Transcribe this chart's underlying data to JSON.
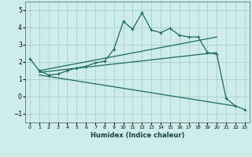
{
  "xlabel": "Humidex (Indice chaleur)",
  "xlim": [
    -0.5,
    23.5
  ],
  "ylim": [
    -1.5,
    5.5
  ],
  "yticks": [
    -1,
    0,
    1,
    2,
    3,
    4,
    5
  ],
  "xticks": [
    0,
    1,
    2,
    3,
    4,
    5,
    6,
    7,
    8,
    9,
    10,
    11,
    12,
    13,
    14,
    15,
    16,
    17,
    18,
    19,
    20,
    21,
    22,
    23
  ],
  "bg_color": "#cdecea",
  "grid_color": "#aacfcc",
  "line_color": "#1a6b5e",
  "line1_x": [
    0,
    1,
    2,
    3,
    4,
    5,
    6,
    7,
    8,
    9,
    10,
    11,
    12,
    13,
    14,
    15,
    16,
    17,
    18,
    19,
    20,
    21,
    22,
    23
  ],
  "line1_y": [
    2.2,
    1.5,
    1.25,
    1.3,
    1.5,
    1.65,
    1.75,
    1.95,
    2.05,
    2.75,
    4.35,
    3.9,
    4.85,
    3.85,
    3.7,
    3.95,
    3.55,
    3.45,
    3.45,
    2.55,
    2.45,
    -0.1,
    -0.55,
    -0.75
  ],
  "line2_x": [
    1,
    20
  ],
  "line2_y": [
    1.5,
    3.45
  ],
  "line3_x": [
    1,
    20
  ],
  "line3_y": [
    1.4,
    2.55
  ],
  "line4_x": [
    1,
    22
  ],
  "line4_y": [
    1.25,
    -0.55
  ],
  "figsize": [
    3.2,
    2.0
  ],
  "dpi": 100
}
